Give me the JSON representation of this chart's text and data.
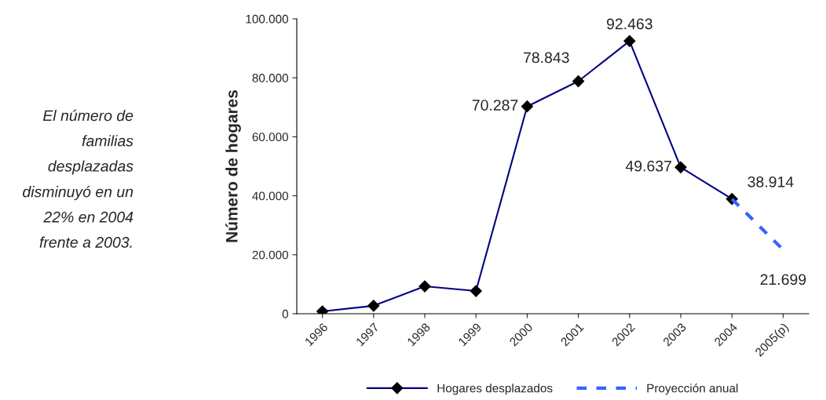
{
  "chart_data": {
    "type": "line",
    "ylabel": "Número de hogares",
    "categories": [
      "1996",
      "1997",
      "1998",
      "1999",
      "2000",
      "2001",
      "2002",
      "2003",
      "2004",
      "2005(p)"
    ],
    "series": [
      {
        "name": "Hogares desplazados",
        "color": "#000080",
        "marker": "diamond",
        "line_style": "solid",
        "values": [
          800,
          2700,
          9300,
          7700,
          70287,
          78843,
          92463,
          49637,
          38914,
          null
        ],
        "value_labels": [
          null,
          null,
          null,
          null,
          "70.287",
          "78.843",
          "92.463",
          "49.637",
          "38.914",
          null
        ]
      },
      {
        "name": "Proyección anual",
        "color": "#3366ff",
        "marker": "none",
        "line_style": "dashed",
        "values": [
          null,
          null,
          null,
          null,
          null,
          null,
          null,
          null,
          38914,
          21699
        ],
        "value_labels": [
          null,
          null,
          null,
          null,
          null,
          null,
          null,
          null,
          null,
          "21.699"
        ]
      }
    ],
    "ylim": [
      0,
      100000
    ],
    "yticks": [
      {
        "value": 0,
        "label": "0"
      },
      {
        "value": 20000,
        "label": "20.000"
      },
      {
        "value": 40000,
        "label": "40.000"
      },
      {
        "value": 60000,
        "label": "60.000"
      },
      {
        "value": 80000,
        "label": "80.000"
      },
      {
        "value": 100000,
        "label": "100.000"
      }
    ],
    "legend": "bottom",
    "grid": false,
    "annotations": [
      "El número de familias desplazadas disminuyó en un 22% en 2004 frente a 2003."
    ]
  }
}
